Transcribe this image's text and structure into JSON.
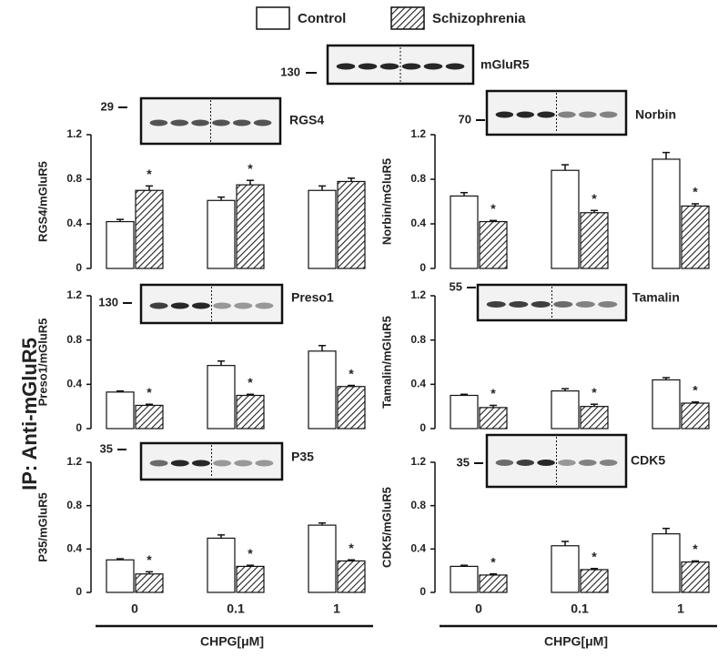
{
  "legend_title": null,
  "ip_blot": {
    "label": "mGluR5",
    "mw": "130"
  },
  "side_label": "IP: Anti-mGluR5",
  "chart_data": [
    {
      "type": "bar",
      "ylabel": "RGS4/mGluR5",
      "blot": {
        "label": "RGS4",
        "mw": "29"
      },
      "ylim": [
        0,
        1.2
      ],
      "yticks": [
        0,
        0.4,
        0.8,
        1.2
      ],
      "series": [
        {
          "name": "Control",
          "color": "#ffffff",
          "values": [
            0.42,
            0.61,
            0.7
          ],
          "errors": [
            0.02,
            0.03,
            0.04
          ]
        },
        {
          "name": "Schizophrenia",
          "color": "#222222",
          "values": [
            0.7,
            0.75,
            0.78
          ],
          "errors": [
            0.04,
            0.04,
            0.03
          ],
          "markers": [
            "*",
            "*",
            null
          ]
        }
      ]
    },
    {
      "type": "bar",
      "ylabel": "Norbin/mGluR5",
      "blot": {
        "label": "Norbin",
        "mw": "70"
      },
      "ylim": [
        0,
        1.2
      ],
      "yticks": [
        0,
        0.4,
        0.8,
        1.2
      ],
      "series": [
        {
          "color": "#ffffff",
          "values": [
            0.65,
            0.88,
            0.98
          ],
          "errors": [
            0.03,
            0.05,
            0.06
          ]
        },
        {
          "color": "#222222",
          "values": [
            0.42,
            0.5,
            0.56
          ],
          "errors": [
            0.01,
            0.02,
            0.02
          ],
          "markers": [
            "*",
            "*",
            "*"
          ]
        }
      ]
    },
    {
      "type": "bar",
      "ylabel": "Preso1/mGluR5",
      "blot": {
        "label": "Preso1",
        "mw": "130"
      },
      "ylim": [
        0,
        1.2
      ],
      "yticks": [
        0,
        0.4,
        0.8,
        1.2
      ],
      "series": [
        {
          "color": "#ffffff",
          "values": [
            0.33,
            0.57,
            0.7
          ],
          "errors": [
            0.01,
            0.04,
            0.05
          ]
        },
        {
          "color": "#222222",
          "values": [
            0.21,
            0.3,
            0.38
          ],
          "errors": [
            0.01,
            0.01,
            0.01
          ],
          "markers": [
            "*",
            "*",
            "*"
          ]
        }
      ]
    },
    {
      "type": "bar",
      "ylabel": "Tamalin/mGluR5",
      "blot": {
        "label": "Tamalin",
        "mw": "55"
      },
      "ylim": [
        0,
        1.2
      ],
      "yticks": [
        0,
        0.4,
        0.8,
        1.2
      ],
      "series": [
        {
          "color": "#ffffff",
          "values": [
            0.3,
            0.34,
            0.44
          ],
          "errors": [
            0.01,
            0.02,
            0.02
          ]
        },
        {
          "color": "#222222",
          "values": [
            0.19,
            0.2,
            0.23
          ],
          "errors": [
            0.02,
            0.02,
            0.01
          ],
          "markers": [
            "*",
            "*",
            "*"
          ]
        }
      ]
    },
    {
      "type": "bar",
      "ylabel": "P35/mGluR5",
      "blot": {
        "label": "P35",
        "mw": "35"
      },
      "categories": [
        "0",
        "0.1",
        "1"
      ],
      "xlabel": "CHPG[μM]",
      "ylim": [
        0,
        1.2
      ],
      "yticks": [
        0,
        0.4,
        0.8,
        1.2
      ],
      "series": [
        {
          "color": "#ffffff",
          "values": [
            0.3,
            0.5,
            0.62
          ],
          "errors": [
            0.01,
            0.03,
            0.02
          ]
        },
        {
          "color": "#222222",
          "values": [
            0.17,
            0.24,
            0.29
          ],
          "errors": [
            0.02,
            0.01,
            0.01
          ],
          "markers": [
            "*",
            "*",
            "*"
          ]
        }
      ]
    },
    {
      "type": "bar",
      "ylabel": "CDK5/mGluR5",
      "blot": {
        "label": "CDK5",
        "mw": "35"
      },
      "categories": [
        "0",
        "0.1",
        "1"
      ],
      "xlabel": "CHPG[μM]",
      "ylim": [
        0,
        1.2
      ],
      "yticks": [
        0,
        0.4,
        0.8,
        1.2
      ],
      "series": [
        {
          "color": "#ffffff",
          "values": [
            0.24,
            0.43,
            0.54
          ],
          "errors": [
            0.01,
            0.04,
            0.05
          ]
        },
        {
          "color": "#222222",
          "values": [
            0.16,
            0.21,
            0.28
          ],
          "errors": [
            0.01,
            0.01,
            0.01
          ],
          "markers": [
            "*",
            "*",
            "*"
          ]
        }
      ]
    }
  ]
}
